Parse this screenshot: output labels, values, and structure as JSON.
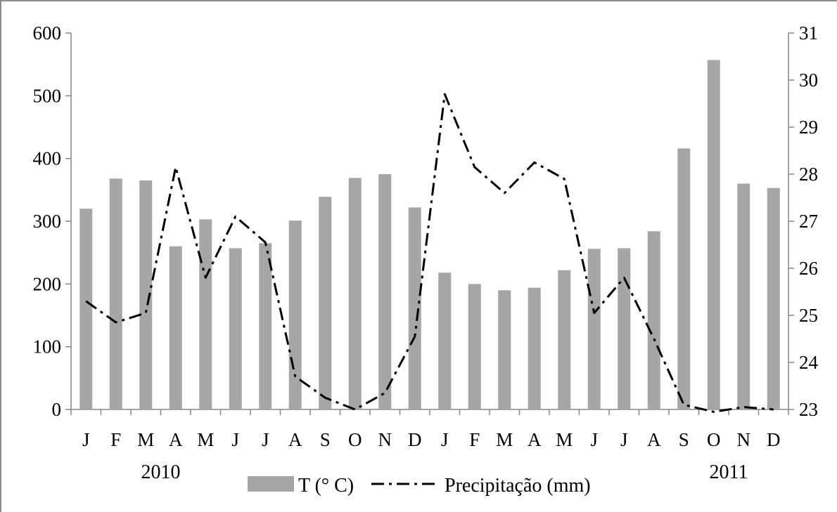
{
  "chart_data": {
    "type": "bar+line",
    "categories": [
      "J",
      "F",
      "M",
      "A",
      "M",
      "J",
      "J",
      "A",
      "S",
      "O",
      "N",
      "D",
      "J",
      "F",
      "M",
      "A",
      "M",
      "J",
      "J",
      "A",
      "S",
      "O",
      "N",
      "D"
    ],
    "year_labels": [
      {
        "text": "2010",
        "index": 2.5
      },
      {
        "text": "2011",
        "index": 21.5
      }
    ],
    "series": [
      {
        "name": "T (° C)",
        "type": "bar",
        "axis": "left",
        "color": "#a6a6a6",
        "values": [
          320,
          368,
          365,
          260,
          303,
          257,
          265,
          301,
          339,
          369,
          375,
          322,
          218,
          200,
          190,
          194,
          222,
          256,
          257,
          284,
          416,
          557,
          360,
          353
        ]
      },
      {
        "name": "Precipitação (mm)",
        "type": "line",
        "axis": "right",
        "color": "#000000",
        "dash": "dash-dot",
        "values": [
          25.3,
          24.85,
          25.05,
          28.15,
          25.8,
          27.1,
          26.55,
          23.7,
          23.25,
          23.0,
          23.35,
          24.55,
          29.7,
          28.15,
          27.6,
          28.25,
          27.9,
          25.05,
          25.8,
          24.5,
          23.1,
          22.95,
          23.05,
          23.0
        ]
      }
    ],
    "y_left": {
      "min": 0,
      "max": 600,
      "ticks": [
        "0",
        "100",
        "200",
        "300",
        "400",
        "500",
        "600"
      ]
    },
    "y_right": {
      "min": 23,
      "max": 31,
      "ticks": [
        "23",
        "24",
        "25",
        "26",
        "27",
        "28",
        "29",
        "30",
        "31"
      ]
    },
    "legend": {
      "position": "bottom"
    },
    "grid": false
  }
}
